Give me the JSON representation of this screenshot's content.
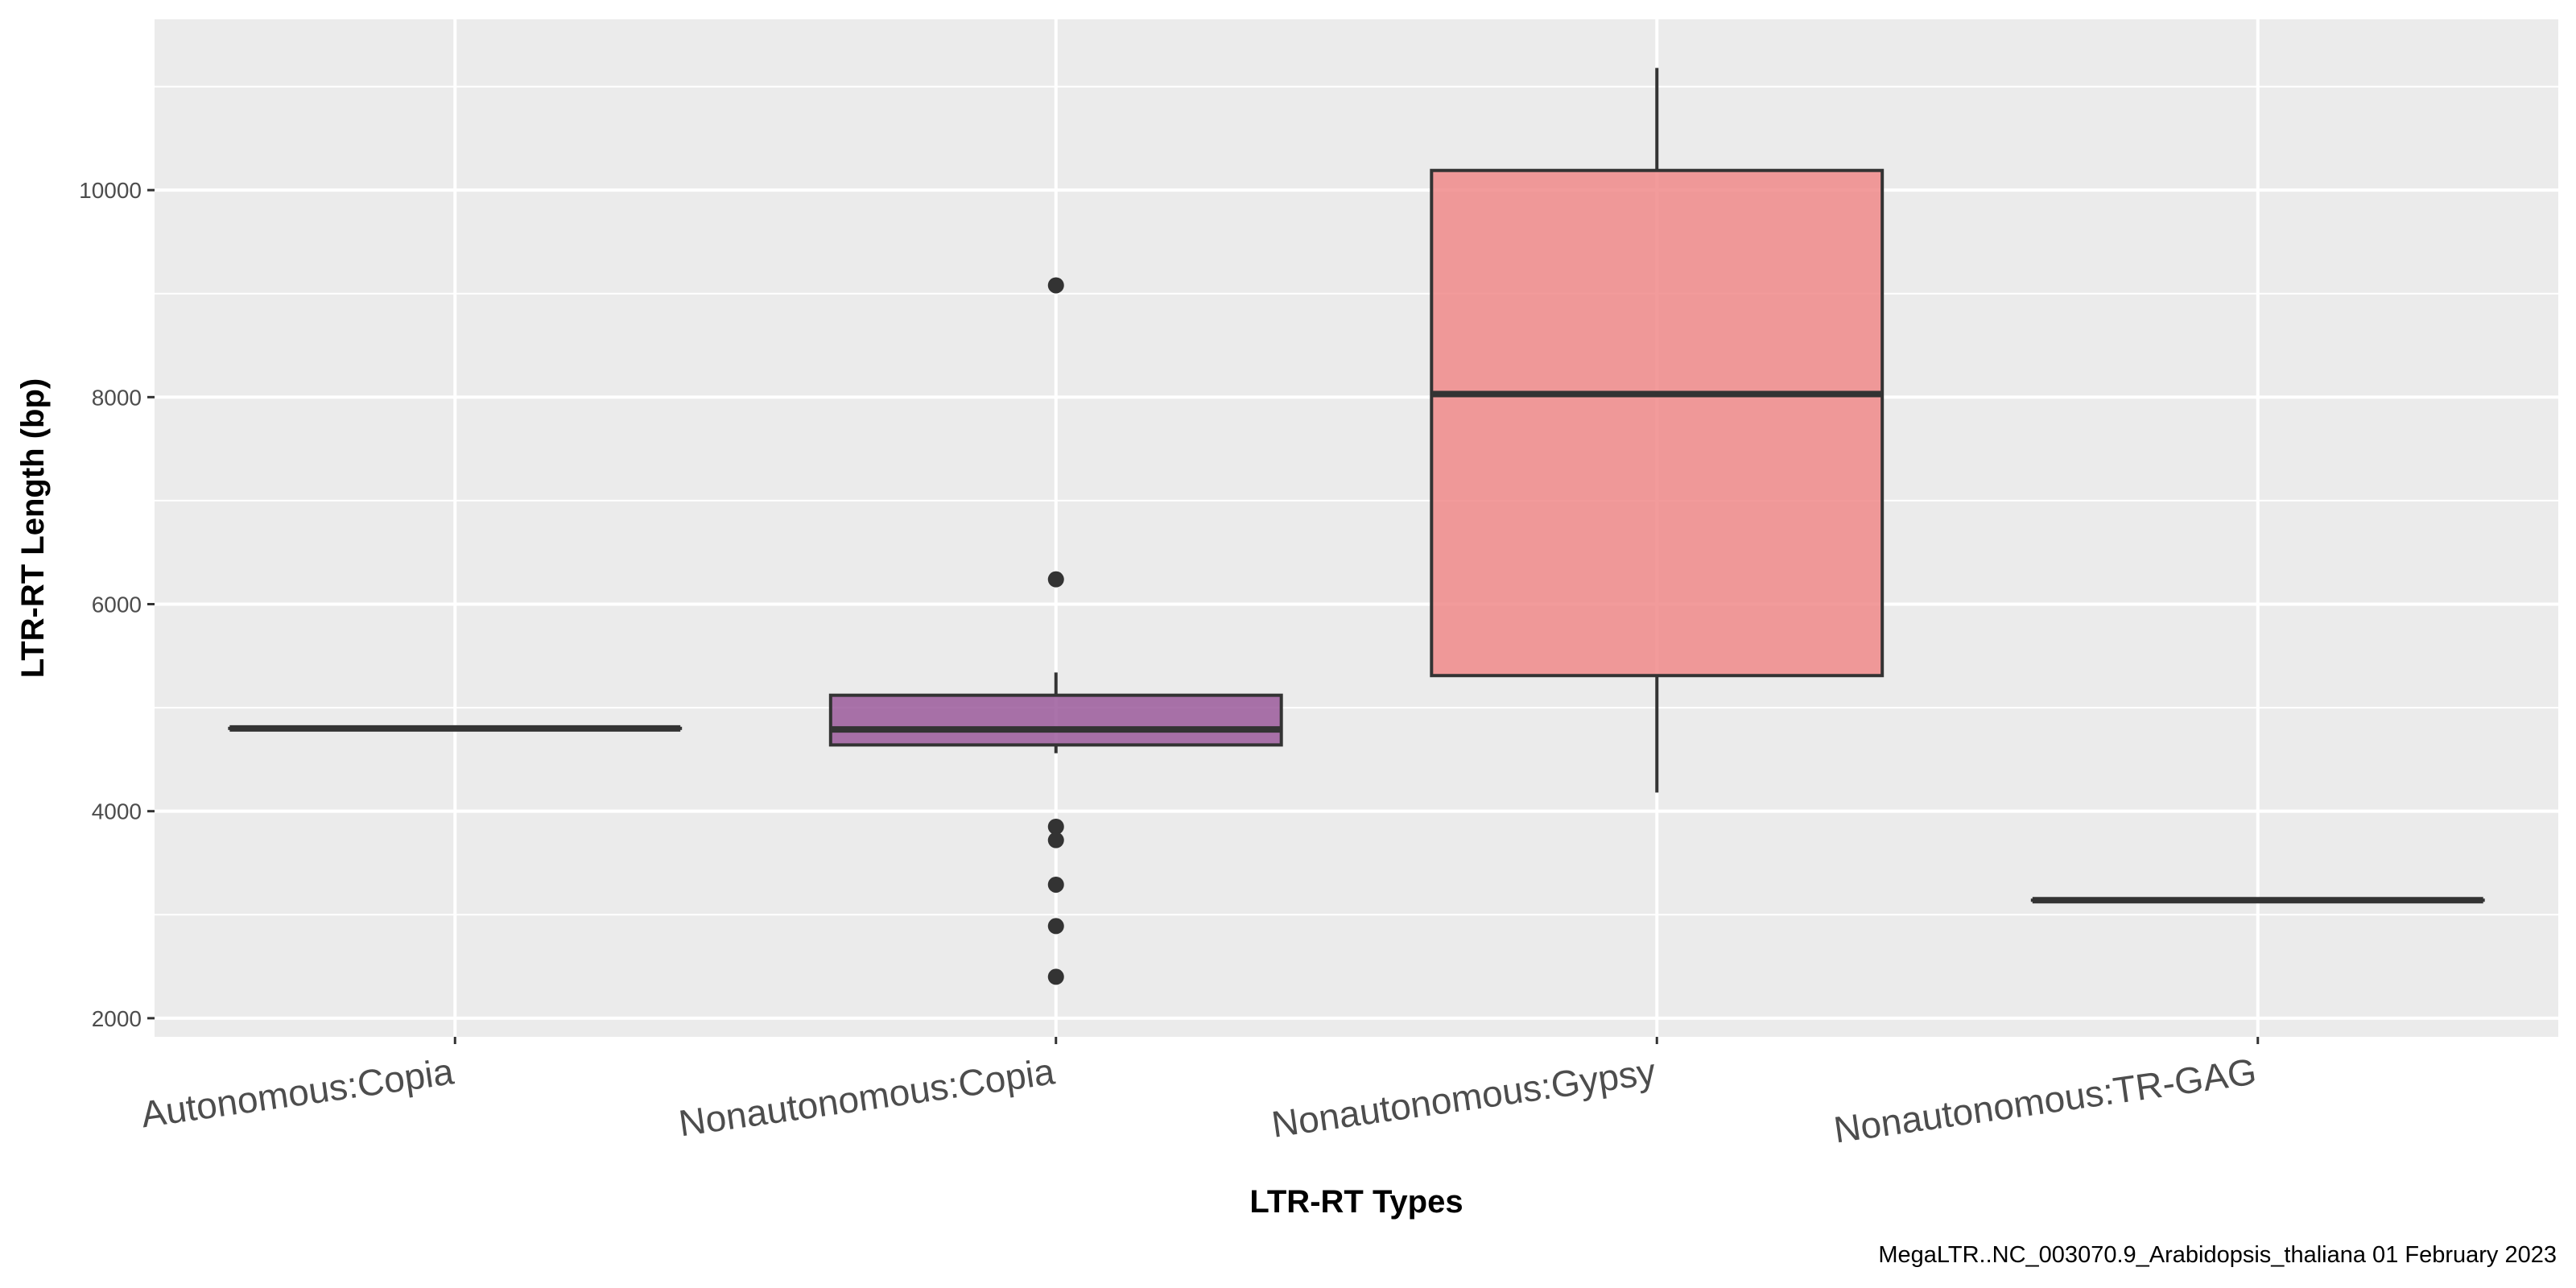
{
  "chart_data": {
    "type": "boxplot",
    "title": "",
    "xlabel": "LTR-RT Types",
    "ylabel": "LTR-RT Length (bp)",
    "caption": "MegaLTR..NC_003070.9_Arabidopsis_thaliana 01 February 2023",
    "ylim": [
      1820,
      11650
    ],
    "yticks": [
      2000,
      4000,
      6000,
      8000,
      10000
    ],
    "ytick_labels": [
      "2000",
      "4000",
      "6000",
      "8000",
      "10000"
    ],
    "grid": true,
    "categories": [
      "Autonomous:Copia",
      "Nonautonomous:Copia",
      "Nonautonomous:Gypsy",
      "Nonautonomous:TR-GAG"
    ],
    "boxes": [
      {
        "category": "Autonomous:Copia",
        "min": 4800,
        "q1": 4800,
        "median": 4800,
        "q3": 4800,
        "max": 4800,
        "outliers": [],
        "color": "#666666"
      },
      {
        "category": "Nonautonomous:Copia",
        "min": 4560,
        "q1": 4640,
        "median": 4790,
        "q3": 5120,
        "max": 5340,
        "outliers": [
          9080,
          6240,
          3850,
          3720,
          3290,
          2890,
          2400
        ],
        "color": "#9b5a9b"
      },
      {
        "category": "Nonautonomous:Gypsy",
        "min": 4180,
        "q1": 5310,
        "median": 8030,
        "q3": 10190,
        "max": 11180,
        "outliers": [],
        "color": "#f08a8a"
      },
      {
        "category": "Nonautonomous:TR-GAG",
        "min": 3140,
        "q1": 3140,
        "median": 3140,
        "q3": 3140,
        "max": 3140,
        "outliers": [],
        "color": "#666666"
      }
    ]
  }
}
